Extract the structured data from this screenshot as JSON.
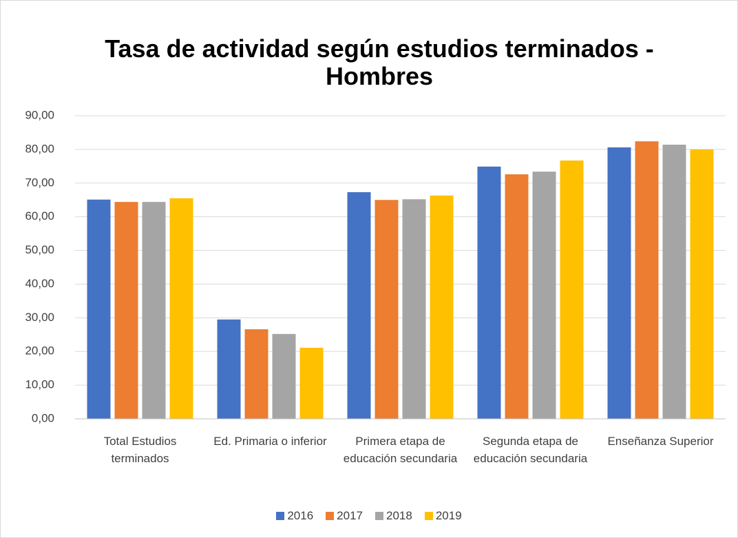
{
  "chart_data": {
    "type": "bar",
    "title": "Tasa de actividad según estudios terminados - Hombres",
    "categories": [
      "Total Estudios terminados",
      "Ed. Primaria o inferior",
      "Primera etapa de educación secundaria",
      "Segunda etapa de educación secundaria",
      "Enseñanza Superior"
    ],
    "series": [
      {
        "name": "2016",
        "color": "#4472c4",
        "values": [
          65.1,
          29.5,
          67.3,
          74.9,
          80.6
        ]
      },
      {
        "name": "2017",
        "color": "#ed7d31",
        "values": [
          64.4,
          26.6,
          65.0,
          72.6,
          82.4
        ]
      },
      {
        "name": "2018",
        "color": "#a5a5a5",
        "values": [
          64.4,
          25.2,
          65.2,
          73.4,
          81.4
        ]
      },
      {
        "name": "2019",
        "color": "#ffc000",
        "values": [
          65.5,
          21.1,
          66.3,
          76.7,
          80.0
        ]
      }
    ],
    "ylim": [
      0,
      90
    ],
    "yticks": [
      {
        "value": 0,
        "label": "0,00"
      },
      {
        "value": 10,
        "label": "10,00"
      },
      {
        "value": 20,
        "label": "20,00"
      },
      {
        "value": 30,
        "label": "30,00"
      },
      {
        "value": 40,
        "label": "40,00"
      },
      {
        "value": 50,
        "label": "50,00"
      },
      {
        "value": 60,
        "label": "60,00"
      },
      {
        "value": 70,
        "label": "70,00"
      },
      {
        "value": 80,
        "label": "80,00"
      },
      {
        "value": 90,
        "label": "90,00"
      }
    ],
    "grid": true,
    "legend": "bottom"
  }
}
